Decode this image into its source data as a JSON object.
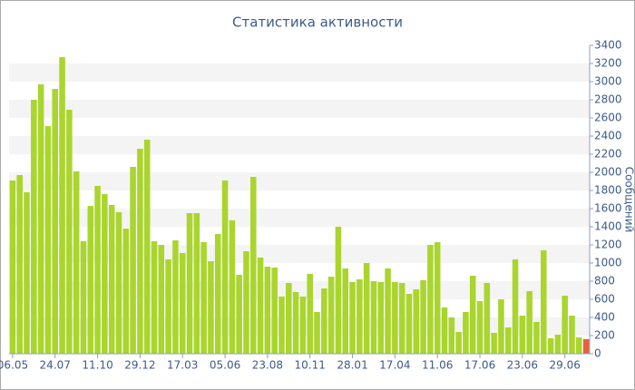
{
  "chart_data": {
    "type": "bar",
    "title": "Статистика активности",
    "y_label": "Сообщений",
    "categories": [
      "06.05",
      null,
      null,
      null,
      null,
      null,
      "24.07",
      null,
      null,
      null,
      null,
      null,
      "11.10",
      null,
      null,
      null,
      null,
      null,
      "29.12",
      null,
      null,
      null,
      null,
      null,
      "17.03",
      null,
      null,
      null,
      null,
      null,
      "05.06",
      null,
      null,
      null,
      null,
      null,
      "23.08",
      null,
      null,
      null,
      null,
      null,
      "10.11",
      null,
      null,
      null,
      null,
      null,
      "28.01",
      null,
      null,
      null,
      null,
      null,
      "17.04",
      null,
      null,
      null,
      null,
      null,
      "11.06",
      null,
      null,
      null,
      null,
      null,
      "17.06",
      null,
      null,
      null,
      null,
      null,
      "23.06",
      null,
      null,
      null,
      null,
      null,
      "29.06",
      null,
      null,
      null
    ],
    "values": [
      1910,
      1970,
      1780,
      2800,
      2970,
      2510,
      2920,
      3270,
      2690,
      2010,
      1240,
      1630,
      1850,
      1760,
      1640,
      1560,
      1380,
      2060,
      2260,
      2360,
      1240,
      1200,
      1040,
      1250,
      1110,
      1550,
      1550,
      1230,
      1020,
      1320,
      1910,
      1470,
      870,
      1130,
      1950,
      1060,
      960,
      950,
      630,
      780,
      680,
      630,
      880,
      460,
      720,
      850,
      1400,
      940,
      790,
      820,
      1000,
      800,
      790,
      940,
      790,
      780,
      660,
      710,
      810,
      1200,
      1230,
      510,
      400,
      240,
      460,
      860,
      580,
      780,
      230,
      600,
      290,
      1040,
      420,
      690,
      350,
      1140,
      170,
      210,
      640,
      420,
      180,
      160
    ],
    "color": "#aad52e",
    "last_color": "#e8603c",
    "ylim": [
      0,
      3400
    ],
    "yticks": [
      0,
      200,
      400,
      600,
      800,
      1000,
      1200,
      1400,
      1600,
      1800,
      2000,
      2200,
      2400,
      2600,
      2800,
      3000,
      3200,
      3400
    ],
    "stripes": true
  }
}
